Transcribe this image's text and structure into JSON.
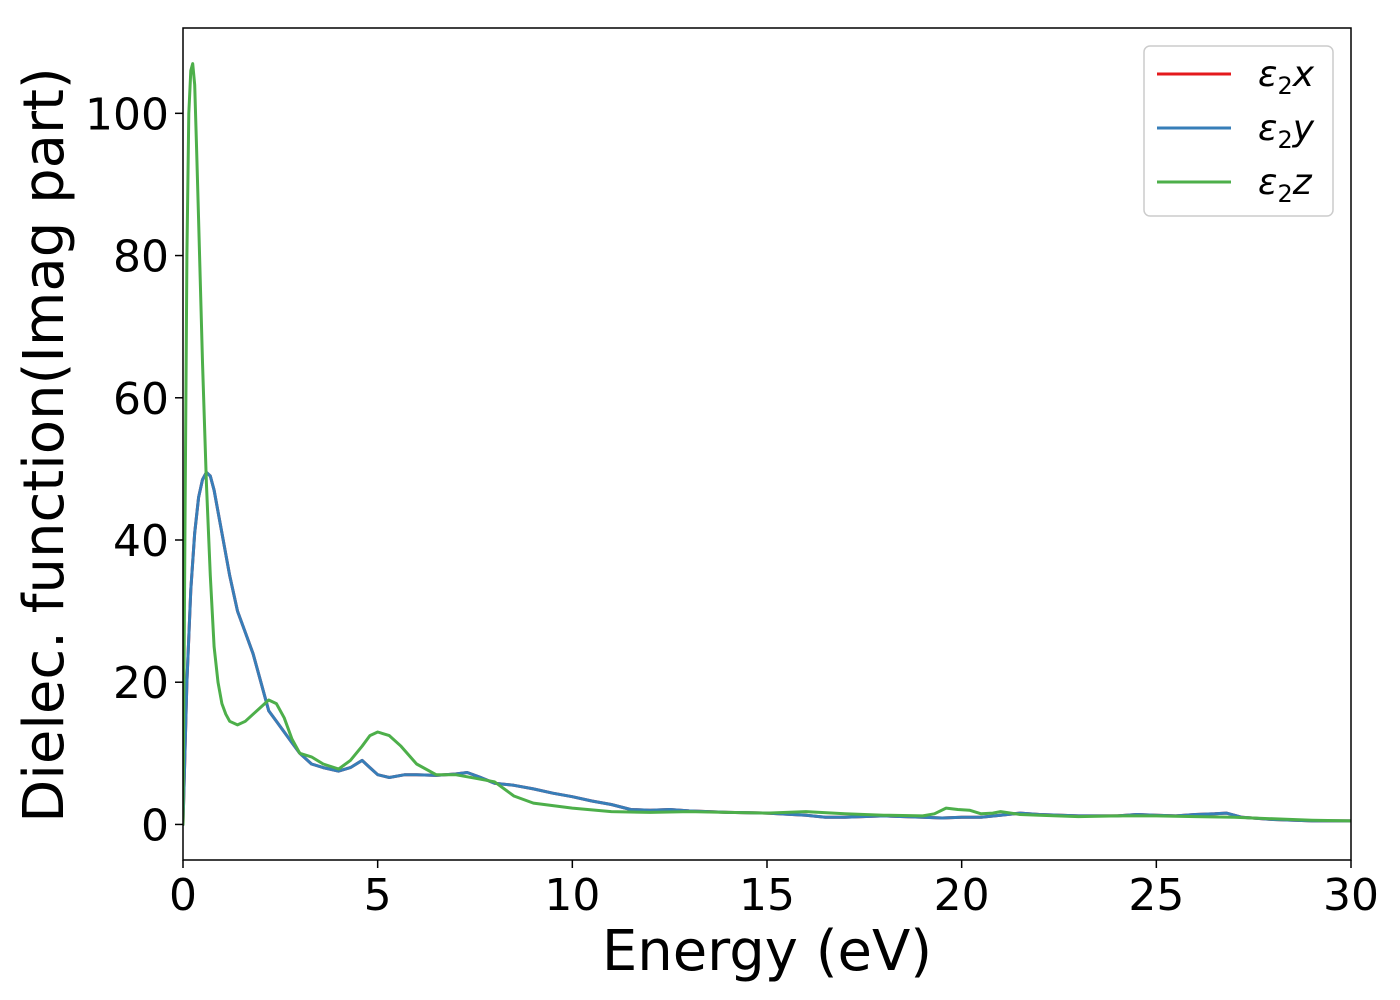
{
  "chart_data": {
    "type": "line",
    "xlabel": "Energy (eV)",
    "ylabel": "Dielec. function(Imag part)",
    "xlim": [
      0,
      30
    ],
    "ylim": [
      -5,
      112
    ],
    "xticks": [
      0,
      5,
      10,
      15,
      20,
      25,
      30
    ],
    "yticks": [
      0,
      20,
      40,
      60,
      80,
      100
    ],
    "grid": false,
    "legend_position": "top-right",
    "series": [
      {
        "name": "ε2x",
        "label_base": "ε",
        "label_sub": "2",
        "label_axis": "x",
        "color": "#e41a1c",
        "x": [
          0,
          0.1,
          0.2,
          0.3,
          0.4,
          0.5,
          0.6,
          0.7,
          0.8,
          0.9,
          1.0,
          1.2,
          1.4,
          1.6,
          1.8,
          2.0,
          2.2,
          2.4,
          2.6,
          2.8,
          3.0,
          3.3,
          3.6,
          4.0,
          4.3,
          4.6,
          4.8,
          5.0,
          5.3,
          5.7,
          6.0,
          6.5,
          7.0,
          7.3,
          7.6,
          8.0,
          8.5,
          9.0,
          9.5,
          10,
          10.5,
          11,
          11.5,
          12,
          12.5,
          13,
          14,
          15,
          16,
          16.5,
          17,
          18,
          19,
          19.5,
          20,
          20.5,
          21,
          21.5,
          22,
          23,
          24,
          24.5,
          25,
          25.5,
          26,
          26.5,
          26.8,
          27.2,
          28,
          29,
          30
        ],
        "y": [
          0,
          20,
          33,
          41,
          46,
          48.5,
          49.5,
          49,
          47,
          44,
          41,
          35,
          30,
          27,
          24,
          20,
          16,
          14.5,
          13,
          11.5,
          10,
          8.5,
          8,
          7.5,
          8,
          9,
          8,
          7,
          6.6,
          7,
          7,
          6.9,
          7.1,
          7.3,
          6.7,
          5.8,
          5.5,
          5,
          4.4,
          3.9,
          3.3,
          2.8,
          2.1,
          2,
          2.1,
          1.9,
          1.7,
          1.6,
          1.3,
          1,
          1,
          1.2,
          1,
          0.9,
          1,
          1,
          1.3,
          1.6,
          1.4,
          1.2,
          1.2,
          1.4,
          1.3,
          1.2,
          1.4,
          1.5,
          1.6,
          1,
          0.7,
          0.5,
          0.5
        ]
      },
      {
        "name": "ε2y",
        "label_base": "ε",
        "label_sub": "2",
        "label_axis": "y",
        "color": "#377eb8",
        "x": [
          0,
          0.1,
          0.2,
          0.3,
          0.4,
          0.5,
          0.6,
          0.7,
          0.8,
          0.9,
          1.0,
          1.2,
          1.4,
          1.6,
          1.8,
          2.0,
          2.2,
          2.4,
          2.6,
          2.8,
          3.0,
          3.3,
          3.6,
          4.0,
          4.3,
          4.6,
          4.8,
          5.0,
          5.3,
          5.7,
          6.0,
          6.5,
          7.0,
          7.3,
          7.6,
          8.0,
          8.5,
          9.0,
          9.5,
          10,
          10.5,
          11,
          11.5,
          12,
          12.5,
          13,
          14,
          15,
          16,
          16.5,
          17,
          18,
          19,
          19.5,
          20,
          20.5,
          21,
          21.5,
          22,
          23,
          24,
          24.5,
          25,
          25.5,
          26,
          26.5,
          26.8,
          27.2,
          28,
          29,
          30
        ],
        "y": [
          0,
          20,
          33,
          41,
          46,
          48.5,
          49.5,
          49,
          47,
          44,
          41,
          35,
          30,
          27,
          24,
          20,
          16,
          14.5,
          13,
          11.5,
          10,
          8.5,
          8,
          7.5,
          8,
          9,
          8,
          7,
          6.6,
          7,
          7,
          6.9,
          7.1,
          7.3,
          6.7,
          5.8,
          5.5,
          5,
          4.4,
          3.9,
          3.3,
          2.8,
          2.1,
          2,
          2.1,
          1.9,
          1.7,
          1.6,
          1.3,
          1,
          1,
          1.2,
          1,
          0.9,
          1,
          1,
          1.3,
          1.6,
          1.4,
          1.2,
          1.2,
          1.4,
          1.3,
          1.2,
          1.4,
          1.5,
          1.6,
          1,
          0.7,
          0.5,
          0.5
        ]
      },
      {
        "name": "ε2z",
        "label_base": "ε",
        "label_sub": "2",
        "label_axis": "z",
        "color": "#4daf4a",
        "x": [
          0,
          0.05,
          0.1,
          0.15,
          0.2,
          0.25,
          0.3,
          0.35,
          0.4,
          0.5,
          0.6,
          0.7,
          0.8,
          0.9,
          1.0,
          1.1,
          1.2,
          1.4,
          1.6,
          1.8,
          2.0,
          2.2,
          2.4,
          2.6,
          2.8,
          3.0,
          3.3,
          3.6,
          4.0,
          4.3,
          4.6,
          4.8,
          5.0,
          5.3,
          5.6,
          6.0,
          6.5,
          7.0,
          7.5,
          8.0,
          8.5,
          9.0,
          10,
          11,
          12,
          13,
          14,
          15,
          16,
          17,
          18,
          19,
          19.3,
          19.6,
          19.9,
          20.2,
          20.5,
          20.8,
          21,
          21.5,
          22,
          23,
          24,
          25,
          26,
          27,
          28,
          29,
          30
        ],
        "y": [
          0,
          40,
          80,
          100,
          106,
          107,
          104,
          95,
          85,
          65,
          48,
          35,
          25,
          20,
          17,
          15.5,
          14.5,
          14,
          14.5,
          15.5,
          16.5,
          17.5,
          17,
          15,
          12,
          10,
          9.5,
          8.5,
          7.8,
          9,
          11,
          12.5,
          13,
          12.5,
          11,
          8.5,
          7,
          7,
          6.5,
          6,
          4,
          3,
          2.3,
          1.8,
          1.7,
          1.8,
          1.7,
          1.6,
          1.8,
          1.5,
          1.3,
          1.2,
          1.5,
          2.3,
          2.1,
          2,
          1.5,
          1.6,
          1.8,
          1.4,
          1.3,
          1.1,
          1.2,
          1.2,
          1.1,
          1,
          0.8,
          0.6,
          0.5
        ]
      }
    ]
  }
}
